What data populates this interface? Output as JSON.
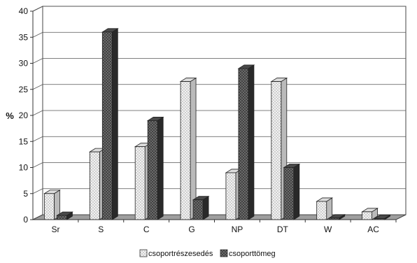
{
  "chart_data": {
    "type": "bar",
    "title": "",
    "xlabel": "",
    "ylabel": "%",
    "ylim": [
      0,
      40
    ],
    "yticks": [
      "0",
      "5",
      "10",
      "15",
      "20",
      "25",
      "30",
      "35",
      "40"
    ],
    "categories": [
      "Sr",
      "S",
      "C",
      "G",
      "NP",
      "DT",
      "W",
      "AC"
    ],
    "series": [
      {
        "name": "csoportrészesedés",
        "values": [
          5,
          13,
          14,
          26.5,
          9,
          26.5,
          3.5,
          1.5
        ],
        "color": "#e8e8e8",
        "pattern": "dotted-light"
      },
      {
        "name": "csoporttömeg",
        "values": [
          0.8,
          36,
          19,
          3.8,
          29,
          10,
          0.3,
          0.2
        ],
        "color": "#3a3a3a",
        "pattern": "crosshatch-dark"
      }
    ],
    "grid": true,
    "legend_position": "bottom",
    "style": "3d"
  }
}
